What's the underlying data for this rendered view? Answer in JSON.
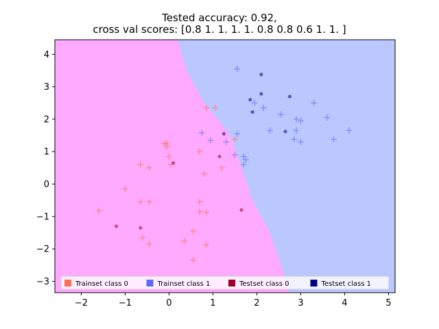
{
  "chart_data": {
    "type": "scatter",
    "title_lines": [
      "Tested accuracy: 0.92,",
      "cross val scores: [0.8 1.  1.  1.  1.  0.8 0.8 0.6 1.  1. ]"
    ],
    "xlabel": "",
    "ylabel": "",
    "xlim": [
      -2.6,
      5.15
    ],
    "ylim": [
      -3.35,
      4.45
    ],
    "xticks": [
      -2,
      -1,
      0,
      1,
      2,
      3,
      4,
      5
    ],
    "yticks": [
      -3,
      -2,
      -1,
      0,
      1,
      2,
      3,
      4
    ],
    "grid": false,
    "legend_placement": "lower-center",
    "decision_regions": {
      "class_0_color": "#ffaaff",
      "class_1_color": "#bbc8ff",
      "boundary": [
        {
          "y": 4.45,
          "x": 0.2
        },
        {
          "y": 3.5,
          "x": 0.4
        },
        {
          "y": 2.5,
          "x": 0.8
        },
        {
          "y": 1.5,
          "x": 1.4
        },
        {
          "y": 0.5,
          "x": 1.65
        },
        {
          "y": -0.5,
          "x": 1.9
        },
        {
          "y": -1.5,
          "x": 2.3
        },
        {
          "y": -2.5,
          "x": 2.55
        },
        {
          "y": -3.35,
          "x": 2.75
        }
      ]
    },
    "series": [
      {
        "name": "Trainset class 0",
        "color": "#ff6e54",
        "marker": "plus",
        "points": [
          [
            0.85,
            2.35
          ],
          [
            1.05,
            2.35
          ],
          [
            -0.05,
            1.25
          ],
          [
            -0.1,
            1.25
          ],
          [
            -0.05,
            1.15
          ],
          [
            0.7,
            1.0
          ],
          [
            0.0,
            0.85
          ],
          [
            0.05,
            0.6
          ],
          [
            -0.65,
            0.6
          ],
          [
            -0.45,
            0.5
          ],
          [
            1.2,
            0.5
          ],
          [
            0.8,
            0.32
          ],
          [
            -1.0,
            -0.15
          ],
          [
            -0.65,
            -0.55
          ],
          [
            -0.45,
            -0.55
          ],
          [
            0.7,
            -0.55
          ],
          [
            0.7,
            -0.85
          ],
          [
            0.85,
            -0.88
          ],
          [
            -1.6,
            -0.82
          ],
          [
            -0.6,
            -1.65
          ],
          [
            0.55,
            -1.45
          ],
          [
            -0.45,
            -1.85
          ],
          [
            0.35,
            -1.75
          ],
          [
            0.85,
            -1.88
          ],
          [
            0.55,
            -2.35
          ],
          [
            1.5,
            1.38
          ]
        ]
      },
      {
        "name": "Trainset class 1",
        "color": "#5a6aff",
        "marker": "plus",
        "points": [
          [
            1.55,
            3.55
          ],
          [
            3.3,
            2.5
          ],
          [
            1.95,
            2.5
          ],
          [
            2.15,
            2.35
          ],
          [
            2.55,
            2.15
          ],
          [
            3.6,
            2.05
          ],
          [
            2.9,
            2.0
          ],
          [
            3.0,
            1.95
          ],
          [
            2.3,
            1.65
          ],
          [
            2.9,
            1.65
          ],
          [
            4.1,
            1.65
          ],
          [
            0.75,
            1.58
          ],
          [
            1.55,
            1.55
          ],
          [
            2.85,
            1.38
          ],
          [
            3.75,
            1.38
          ],
          [
            0.95,
            1.35
          ],
          [
            1.3,
            1.3
          ],
          [
            3.0,
            1.3
          ],
          [
            1.5,
            0.9
          ],
          [
            1.7,
            0.85
          ],
          [
            1.75,
            0.75
          ],
          [
            1.7,
            0.6
          ]
        ]
      },
      {
        "name": "Testset class 0",
        "color": "#a00028",
        "marker": "dot",
        "points": [
          [
            0.1,
            0.65
          ],
          [
            1.15,
            0.85
          ],
          [
            -1.2,
            -1.3
          ],
          [
            -0.65,
            -1.35
          ],
          [
            1.65,
            -0.8
          ]
        ]
      },
      {
        "name": "Testset class 1",
        "color": "#00008b",
        "marker": "dot",
        "points": [
          [
            2.1,
            3.38
          ],
          [
            2.1,
            2.78
          ],
          [
            1.85,
            2.6
          ],
          [
            2.75,
            2.7
          ],
          [
            1.9,
            2.22
          ],
          [
            1.25,
            1.55
          ],
          [
            2.65,
            1.62
          ]
        ]
      }
    ]
  }
}
